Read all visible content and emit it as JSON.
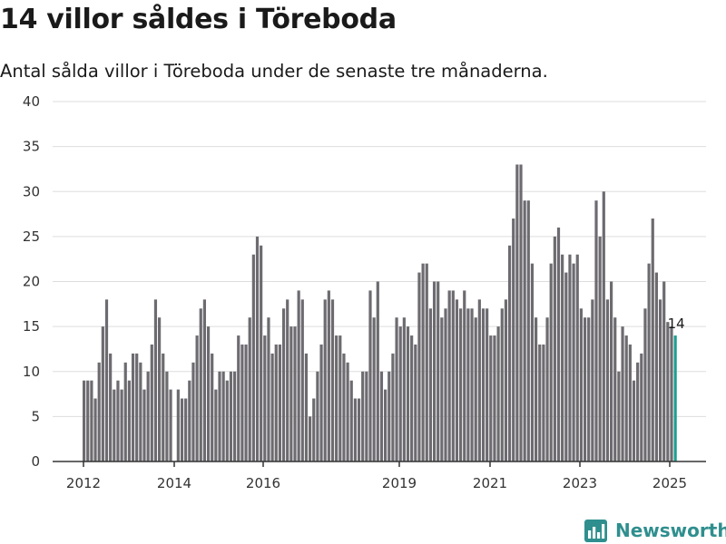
{
  "header": {
    "title": "14 villor såldes i Töreboda",
    "subtitle": "Antal sålda villor i Töreboda under de senaste tre månaderna."
  },
  "footer": {
    "brand": "Newsworthy"
  },
  "colors": {
    "bar": "#6d6b70",
    "highlight": "#1e9e90",
    "grid": "#dddddd",
    "axis": "#333333",
    "brand": "#2f8f8e"
  },
  "chart_data": {
    "type": "bar",
    "title": "14 villor såldes i Töreboda",
    "subtitle": "Antal sålda villor i Töreboda under de senaste tre månaderna.",
    "xlabel": "",
    "ylabel": "",
    "ylim": [
      0,
      40
    ],
    "yticks": [
      0,
      5,
      10,
      15,
      20,
      25,
      30,
      35,
      40
    ],
    "xticks": [
      "2012",
      "2014",
      "2016",
      "2019",
      "2021",
      "2023",
      "2025"
    ],
    "grid": true,
    "highlight_label": "14",
    "series": [
      {
        "values": [
          9,
          9,
          9,
          7,
          11,
          15,
          18,
          12,
          8,
          9,
          8,
          11,
          9,
          12,
          12,
          11,
          8,
          10,
          13,
          18,
          16,
          12,
          10,
          8,
          0,
          8,
          7,
          7,
          9,
          11,
          14,
          17,
          18,
          15,
          12,
          8,
          10,
          10,
          9,
          10,
          10,
          14,
          13,
          13,
          16,
          23,
          25,
          24,
          14,
          16,
          12,
          13,
          13,
          17,
          18,
          15,
          15,
          19,
          18,
          12,
          5,
          7,
          10,
          13,
          18,
          19,
          18,
          14,
          14,
          12,
          11,
          9,
          7,
          7,
          10,
          10,
          19,
          16,
          20,
          10,
          8,
          10,
          12,
          16,
          15,
          16,
          15,
          14,
          13,
          21,
          22,
          22,
          17,
          20,
          20,
          16,
          17,
          19,
          19,
          18,
          17,
          19,
          17,
          17,
          16,
          18,
          17,
          17,
          14,
          14,
          15,
          17,
          18,
          24,
          27,
          33,
          33,
          29,
          29,
          22,
          16,
          13,
          13,
          16,
          22,
          25,
          26,
          23,
          21,
          23,
          22,
          23,
          17,
          16,
          16,
          18,
          29,
          25,
          30,
          18,
          20,
          16,
          10,
          15,
          14,
          13,
          9,
          11,
          12,
          17,
          22,
          27,
          21,
          18,
          20,
          15.5,
          15,
          14
        ]
      }
    ]
  }
}
